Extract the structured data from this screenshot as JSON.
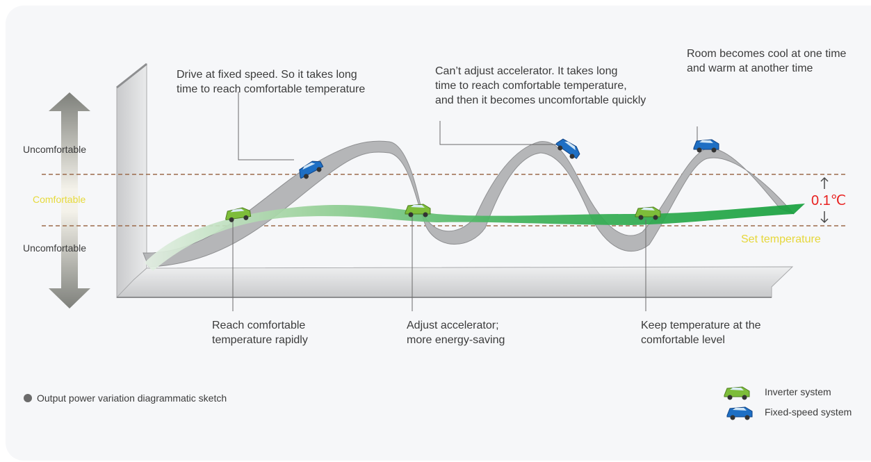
{
  "diagram": {
    "y_axis_labels": {
      "upper": "Uncomfortable",
      "middle": "Comfortable",
      "lower": "Uncomfortable"
    },
    "callouts_top": [
      "Drive at fixed speed. So it takes long\ntime to reach comfortable temperature",
      "Can’t adjust accelerator. It takes long\ntime to reach comfortable temperature,\nand then it becomes uncomfortable quickly",
      "Room becomes cool at one time\nand warm at another time"
    ],
    "callouts_bottom": [
      "Reach comfortable\ntemperature rapidly",
      "Adjust accelerator;\nmore energy-saving",
      "Keep temperature at the\ncomfortable level"
    ],
    "tolerance_value": "0.1℃",
    "set_temperature_label": "Set temperature",
    "footnote": "Output power variation diagrammatic sketch",
    "legend": [
      {
        "label": "Inverter system",
        "color": "#7dbd3a",
        "icon": "green-car-icon"
      },
      {
        "label": "Fixed-speed system",
        "color": "#1e6fc4",
        "icon": "blue-car-icon"
      }
    ],
    "colors": {
      "inverter_ribbon": "#22a845",
      "fixed_ribbon": "#b5b6b8",
      "dashed_line": "#9b6a4a",
      "tolerance_text": "#e8201f",
      "comfortable_text": "#e6da3c"
    }
  }
}
